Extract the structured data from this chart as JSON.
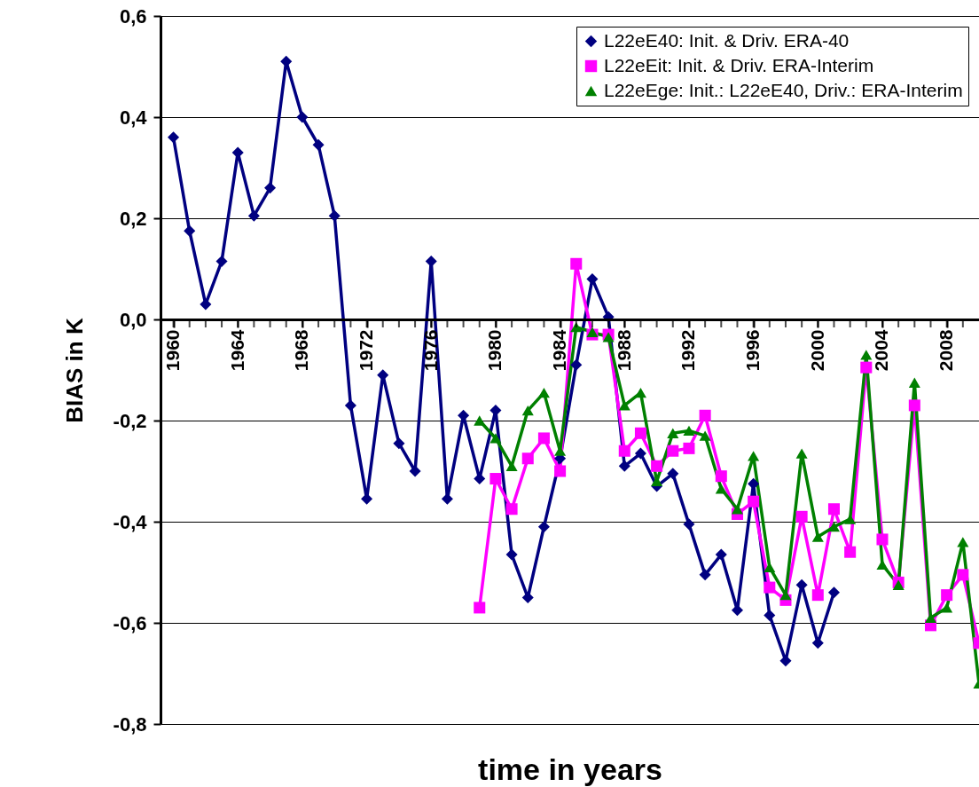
{
  "chart_data": {
    "type": "line",
    "xlabel": "time in years",
    "ylabel": "BIAS in K",
    "x": [
      1960,
      1961,
      1962,
      1963,
      1964,
      1965,
      1966,
      1967,
      1968,
      1969,
      1970,
      1971,
      1972,
      1973,
      1974,
      1975,
      1976,
      1977,
      1978,
      1979,
      1980,
      1981,
      1982,
      1983,
      1984,
      1985,
      1986,
      1987,
      1988,
      1989,
      1990,
      1991,
      1992,
      1993,
      1994,
      1995,
      1996,
      1997,
      1998,
      1999,
      2000,
      2001,
      2002,
      2003,
      2004,
      2005,
      2006,
      2007,
      2008,
      2009,
      2010
    ],
    "series": [
      {
        "name": "L22eE40: Init. & Driv. ERA-40",
        "color": "#000080",
        "marker": "diamond",
        "values": [
          0.36,
          0.175,
          0.03,
          0.115,
          0.33,
          0.205,
          0.26,
          0.51,
          0.4,
          0.345,
          0.205,
          -0.17,
          -0.355,
          -0.11,
          -0.245,
          -0.3,
          0.115,
          -0.355,
          -0.19,
          -0.315,
          -0.18,
          -0.465,
          -0.55,
          -0.41,
          -0.275,
          -0.09,
          0.08,
          0.005,
          -0.29,
          -0.265,
          -0.33,
          -0.305,
          -0.405,
          -0.505,
          -0.465,
          -0.575,
          -0.325,
          -0.585,
          -0.675,
          -0.525,
          -0.64,
          -0.54,
          null,
          null,
          null,
          null,
          null,
          null,
          null,
          null,
          null
        ]
      },
      {
        "name": "L22eEit: Init. & Driv. ERA-Interim",
        "color": "#ff00ff",
        "marker": "square",
        "values": [
          null,
          null,
          null,
          null,
          null,
          null,
          null,
          null,
          null,
          null,
          null,
          null,
          null,
          null,
          null,
          null,
          null,
          null,
          null,
          -0.57,
          -0.315,
          -0.375,
          -0.275,
          -0.235,
          -0.3,
          0.11,
          -0.03,
          -0.03,
          -0.26,
          -0.225,
          -0.29,
          -0.26,
          -0.255,
          -0.19,
          -0.31,
          -0.385,
          -0.36,
          -0.53,
          -0.555,
          -0.39,
          -0.545,
          -0.375,
          -0.46,
          -0.095,
          -0.435,
          -0.52,
          -0.17,
          -0.605,
          -0.545,
          -0.505,
          -0.64
        ]
      },
      {
        "name": "L22eEge: Init.: L22eE40, Driv.: ERA-Interim",
        "color": "#008000",
        "marker": "triangle",
        "values": [
          null,
          null,
          null,
          null,
          null,
          null,
          null,
          null,
          null,
          null,
          null,
          null,
          null,
          null,
          null,
          null,
          null,
          null,
          null,
          -0.2,
          -0.235,
          -0.29,
          -0.18,
          -0.145,
          -0.26,
          -0.015,
          -0.025,
          -0.035,
          -0.17,
          -0.145,
          -0.32,
          -0.225,
          -0.22,
          -0.23,
          -0.335,
          -0.375,
          -0.27,
          -0.49,
          -0.545,
          -0.265,
          -0.43,
          -0.41,
          -0.395,
          -0.07,
          -0.485,
          -0.525,
          -0.125,
          -0.59,
          -0.57,
          -0.44,
          -0.72
        ]
      }
    ],
    "xlim": [
      1959.2,
      2010
    ],
    "xticks": [
      1960,
      {
        "value": 1961,
        "label": null
      },
      {
        "value": 1962,
        "label": null
      },
      {
        "value": 1963,
        "label": null
      },
      1964,
      {
        "value": 1965,
        "label": null
      },
      {
        "value": 1966,
        "label": null
      },
      {
        "value": 1967,
        "label": null
      },
      1968,
      {
        "value": 1969,
        "label": null
      },
      {
        "value": 1970,
        "label": null
      },
      {
        "value": 1971,
        "label": null
      },
      1972,
      {
        "value": 1973,
        "label": null
      },
      {
        "value": 1974,
        "label": null
      },
      {
        "value": 1975,
        "label": null
      },
      1976,
      {
        "value": 1977,
        "label": null
      },
      {
        "value": 1978,
        "label": null
      },
      {
        "value": 1979,
        "label": null
      },
      1980,
      {
        "value": 1981,
        "label": null
      },
      {
        "value": 1982,
        "label": null
      },
      {
        "value": 1983,
        "label": null
      },
      1984,
      {
        "value": 1985,
        "label": null
      },
      {
        "value": 1986,
        "label": null
      },
      {
        "value": 1987,
        "label": null
      },
      1988,
      {
        "value": 1989,
        "label": null
      },
      {
        "value": 1990,
        "label": null
      },
      {
        "value": 1991,
        "label": null
      },
      1992,
      {
        "value": 1993,
        "label": null
      },
      {
        "value": 1994,
        "label": null
      },
      {
        "value": 1995,
        "label": null
      },
      1996,
      {
        "value": 1997,
        "label": null
      },
      {
        "value": 1998,
        "label": null
      },
      {
        "value": 1999,
        "label": null
      },
      2000,
      {
        "value": 2001,
        "label": null
      },
      {
        "value": 2002,
        "label": null
      },
      {
        "value": 2003,
        "label": null
      },
      2004,
      {
        "value": 2005,
        "label": null
      },
      {
        "value": 2006,
        "label": null
      },
      {
        "value": 2007,
        "label": null
      },
      2008,
      {
        "value": 2009,
        "label": null
      }
    ],
    "ylim": [
      -0.8,
      0.6
    ],
    "yticks": [
      {
        "value": -0.8,
        "label": "-0,8"
      },
      {
        "value": -0.6,
        "label": "-0,6"
      },
      {
        "value": -0.4,
        "label": "-0,4"
      },
      {
        "value": -0.2,
        "label": "-0,2"
      },
      {
        "value": 0,
        "label": "0,0"
      },
      {
        "value": 0.2,
        "label": "0,2"
      },
      {
        "value": 0.4,
        "label": "0,4"
      },
      {
        "value": 0.6,
        "label": "0,6"
      }
    ],
    "grid": "y",
    "legend": "top right",
    "line_style": "solid"
  }
}
